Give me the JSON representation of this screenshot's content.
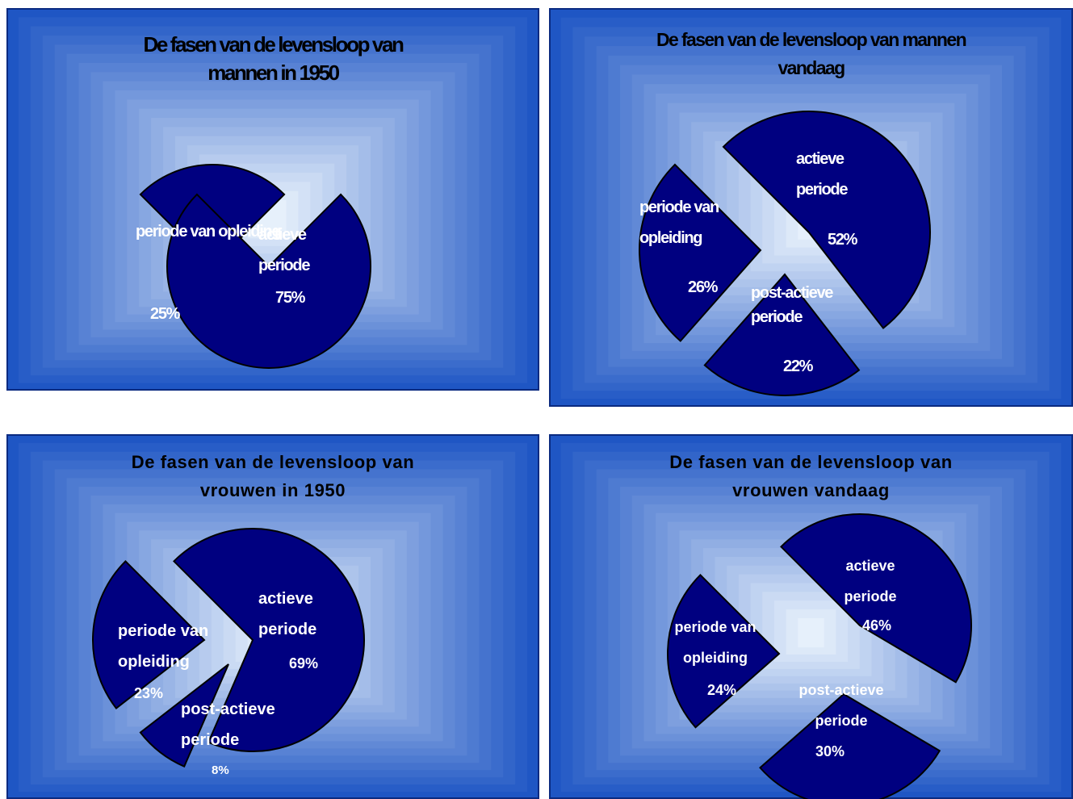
{
  "colors": {
    "slice": "#000080",
    "panel_edge": "#1f56c4",
    "panel_center": "#e6f0fb"
  },
  "chart_data": [
    {
      "type": "pie",
      "title": "De fasen van de levensloop van\nmannen in 1950",
      "slices": [
        {
          "label": "periode van opleiding",
          "value": 25,
          "value_label": "25%"
        },
        {
          "label": "actieve periode",
          "value": 75,
          "value_label": "75%"
        }
      ]
    },
    {
      "type": "pie",
      "title": "De fasen van de levensloop van mannen\nvandaag",
      "slices": [
        {
          "label": "actieve periode",
          "value": 52,
          "value_label": "52%"
        },
        {
          "label": "post-actieve periode",
          "value": 22,
          "value_label": "22%"
        },
        {
          "label": "periode van opleiding",
          "value": 26,
          "value_label": "26%"
        }
      ]
    },
    {
      "type": "pie",
      "title": "De fasen van de levensloop van\nvrouwen in 1950",
      "slices": [
        {
          "label": "actieve periode",
          "value": 69,
          "value_label": "69%"
        },
        {
          "label": "post-actieve periode",
          "value": 8,
          "value_label": "8%"
        },
        {
          "label": "periode van opleiding",
          "value": 23,
          "value_label": "23%"
        }
      ]
    },
    {
      "type": "pie",
      "title": "De fasen van de levensloop van\nvrouwen vandaag",
      "slices": [
        {
          "label": "actieve periode",
          "value": 46,
          "value_label": "46%"
        },
        {
          "label": "post-actieve periode",
          "value": 30,
          "value_label": "30%"
        },
        {
          "label": "periode van opleiding",
          "value": 24,
          "value_label": "24%"
        }
      ]
    }
  ]
}
